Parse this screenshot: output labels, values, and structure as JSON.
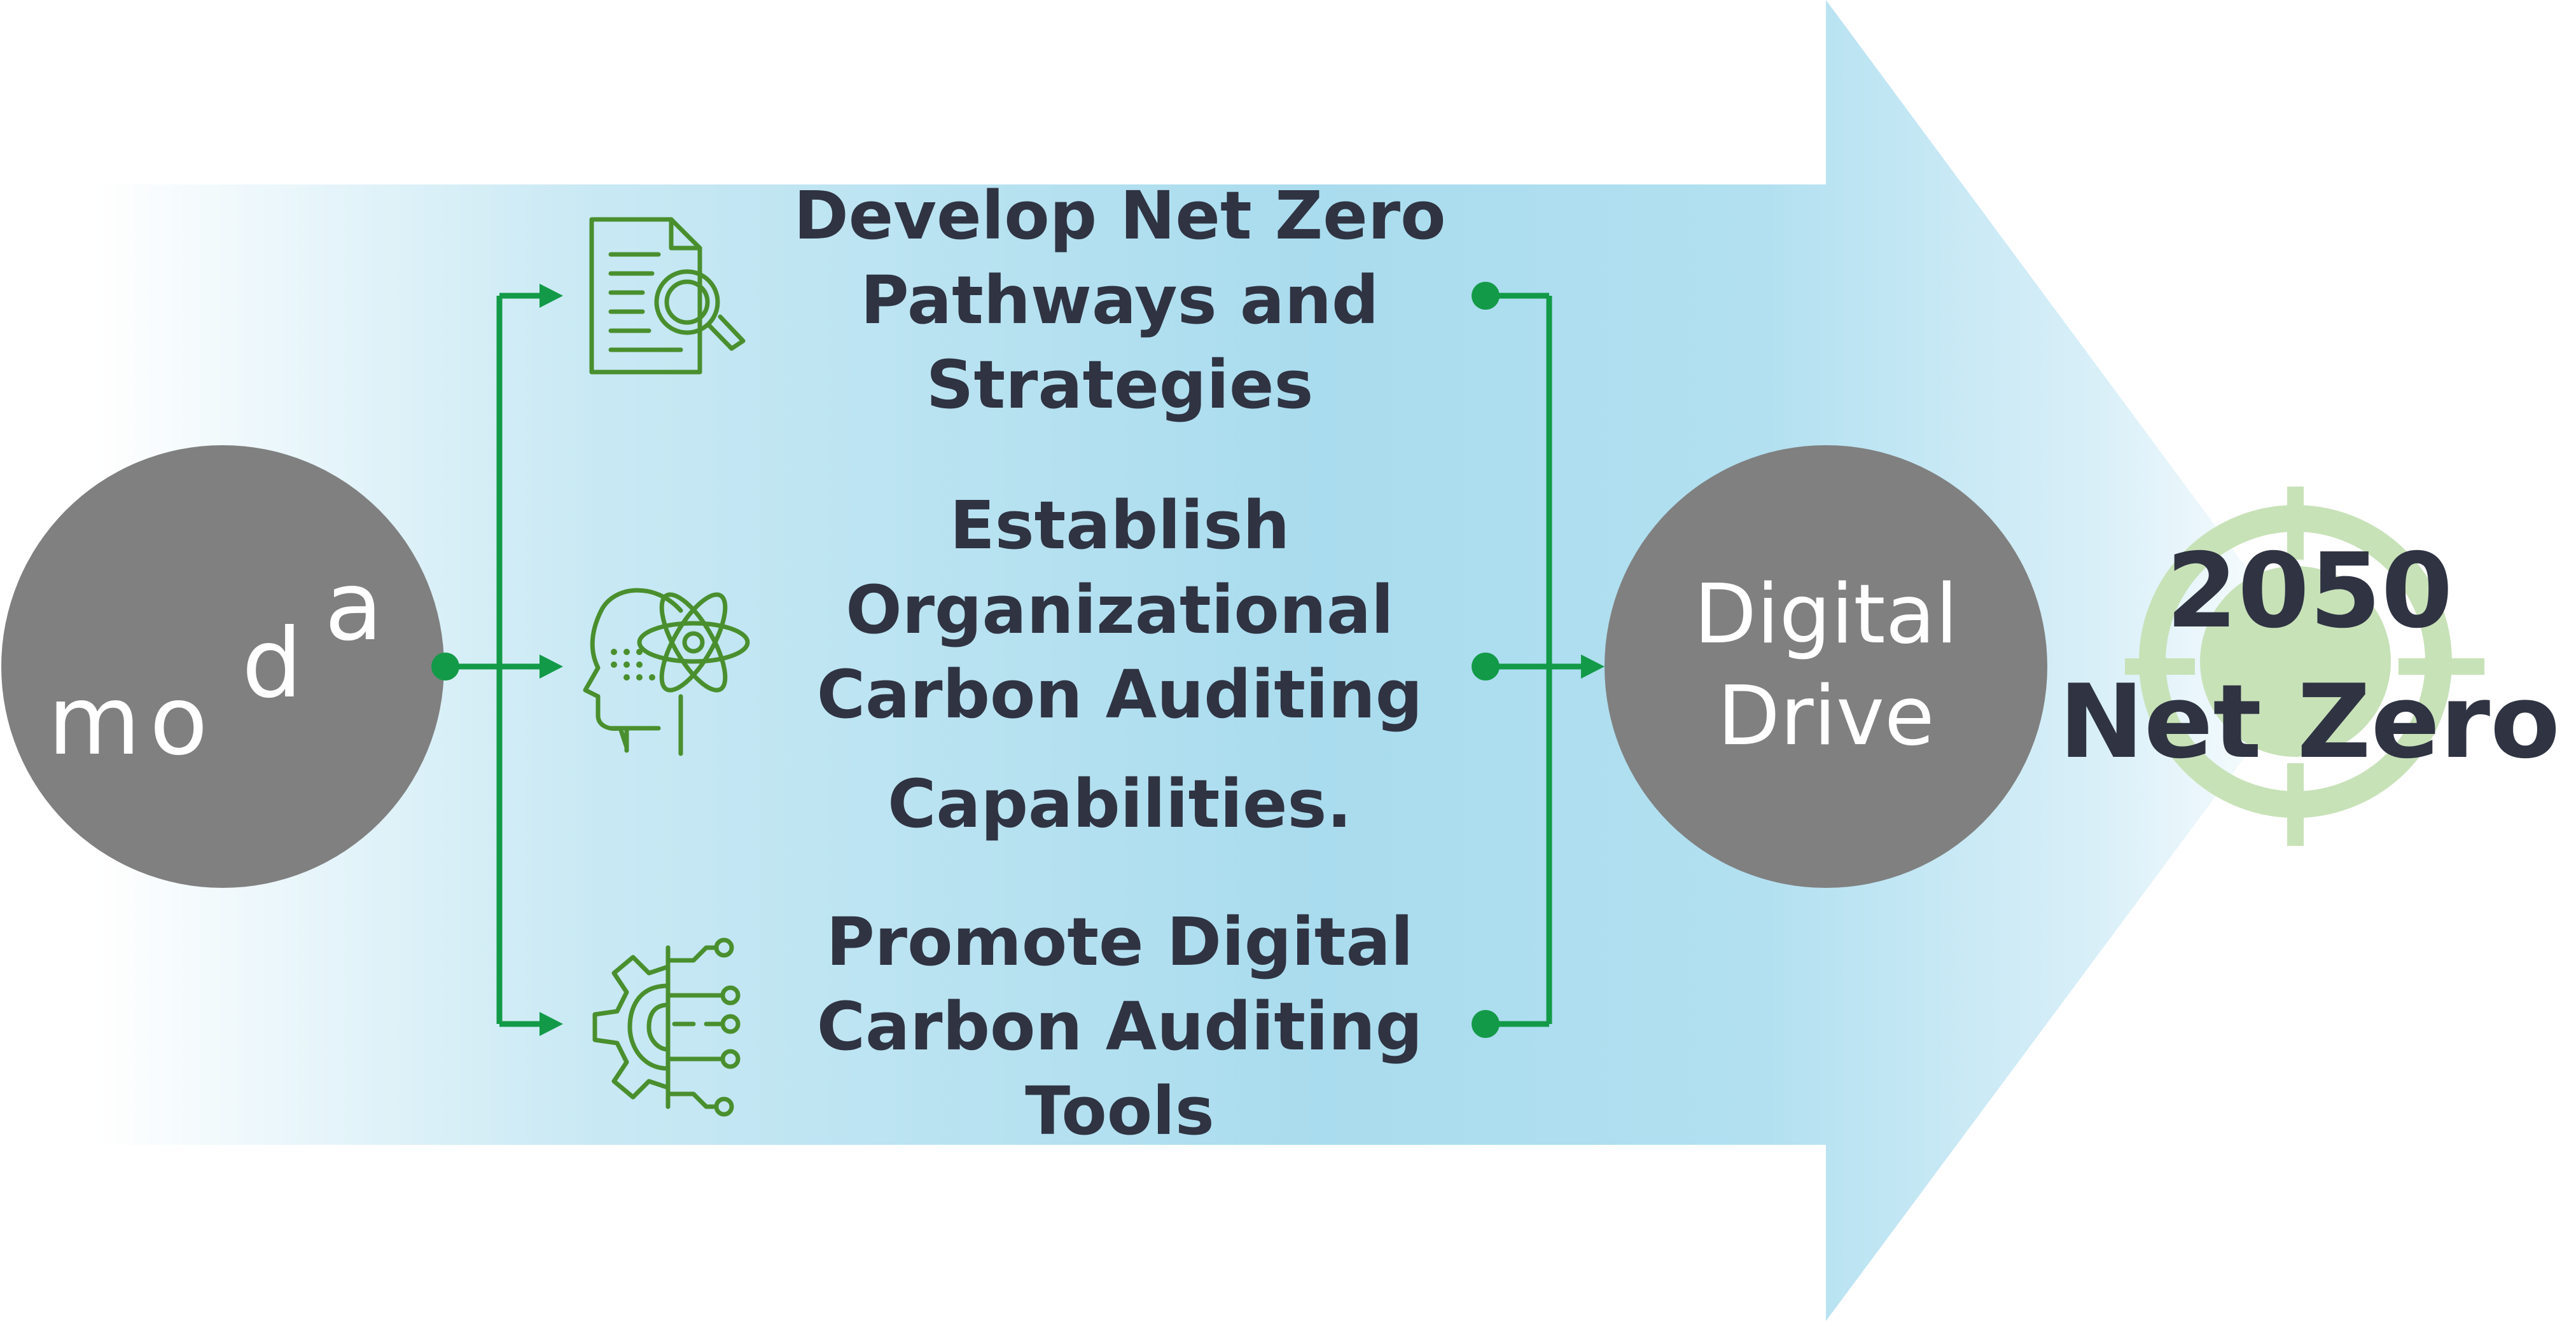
{
  "colors": {
    "arrow": "#aedeef",
    "connector": "#139a48",
    "circle": "#808080",
    "icon": "#4a8f2e",
    "target": "#c8e2b8",
    "text": "#2f3342"
  },
  "source": {
    "logo_text": "moda"
  },
  "steps": [
    {
      "icon": "document-search-icon",
      "lines": [
        "Develop Net Zero",
        "Pathways and",
        "Strategies"
      ]
    },
    {
      "icon": "head-atom-icon",
      "lines": [
        "Establish",
        "Organizational",
        "Carbon Auditing",
        "Capabilities."
      ]
    },
    {
      "icon": "gear-circuit-icon",
      "lines": [
        "Promote Digital",
        "Carbon Auditing",
        "Tools"
      ]
    }
  ],
  "hub": {
    "lines": [
      "Digital",
      "Drive"
    ]
  },
  "goal": {
    "icon": "target-icon",
    "year": "2050",
    "label": "Net Zero"
  }
}
